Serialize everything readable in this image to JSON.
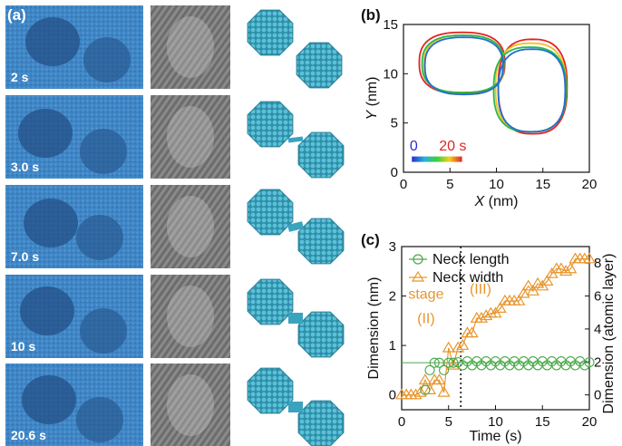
{
  "panel_a": {
    "label": "(a)",
    "frames": [
      {
        "time_label": "2 s"
      },
      {
        "time_label": "3.0 s"
      },
      {
        "time_label": "7.0 s"
      },
      {
        "time_label": "10 s"
      },
      {
        "time_label": "20.6 s"
      }
    ]
  },
  "panel_b": {
    "label": "(b)",
    "colorbar_start": "0",
    "colorbar_end": "20 s"
  },
  "panel_c": {
    "label": "(c)",
    "legend": [
      "Neck  length",
      "Neck  width"
    ],
    "stage_ii_line1": "stage",
    "stage_ii_line2": "(II)",
    "stage_iii": "(III)"
  },
  "colors": {
    "tem_blue": "#3f86c6",
    "atoms": "#3aa3bd",
    "neck_length": "#4aa84a",
    "neck_width": "#e8962e"
  },
  "chart_data": [
    {
      "type": "line",
      "panel": "b",
      "x_label": "X (nm)",
      "y_label": "Y (nm)",
      "xlim": [
        0,
        20
      ],
      "ylim": [
        0,
        15
      ],
      "x_ticks": [
        0,
        5,
        10,
        15,
        20
      ],
      "y_ticks": [
        0,
        5,
        10,
        15
      ],
      "series": [
        {
          "color": "#e52222",
          "left_particle": {
            "cx": 6.3,
            "cy": 11.1,
            "rx": 4.6,
            "ry": 3.1
          },
          "right_particle": {
            "cx": 13.9,
            "cy": 8.7,
            "rx": 3.7,
            "ry": 4.8
          }
        },
        {
          "color": "#f0c020",
          "left_particle": {
            "cx": 6.5,
            "cy": 10.9,
            "rx": 4.3,
            "ry": 3.0
          },
          "right_particle": {
            "cx": 13.7,
            "cy": 8.6,
            "rx": 3.8,
            "ry": 4.5
          }
        },
        {
          "color": "#2ab84a",
          "left_particle": {
            "cx": 6.4,
            "cy": 11.0,
            "rx": 4.4,
            "ry": 2.9
          },
          "right_particle": {
            "cx": 13.6,
            "cy": 8.4,
            "rx": 3.9,
            "ry": 4.3
          }
        },
        {
          "color": "#1f6fd0",
          "left_particle": {
            "cx": 6.5,
            "cy": 10.8,
            "rx": 4.2,
            "ry": 2.9
          },
          "right_particle": {
            "cx": 13.8,
            "cy": 8.3,
            "rx": 3.6,
            "ry": 4.2
          }
        }
      ]
    },
    {
      "type": "line",
      "panel": "c",
      "x_label": "Time (s)",
      "y_label": "Dimension (nm)",
      "y2_label": "Dimension (atomic layer)",
      "xlim": [
        0,
        20
      ],
      "ylim": [
        -0.3,
        3
      ],
      "y2lim": [
        -0.9,
        9
      ],
      "x_ticks": [
        0,
        5,
        10,
        15,
        20
      ],
      "y_ticks": [
        0,
        1,
        2,
        3
      ],
      "y2_ticks": [
        0,
        2,
        4,
        6,
        8
      ],
      "stage_boundary_time": 6.3,
      "series": [
        {
          "name": "Neck length",
          "marker": "circle",
          "x": [
            2.5,
            3.0,
            3.5,
            4.0,
            4.5,
            5.0,
            5.5,
            6.0,
            6.5,
            7.0,
            7.5,
            8.0,
            8.5,
            9.0,
            9.5,
            10.0,
            10.5,
            11.0,
            11.5,
            12.0,
            12.5,
            13.0,
            13.5,
            14.0,
            14.5,
            15.0,
            15.5,
            16.0,
            16.5,
            17.0,
            17.5,
            18.0,
            18.5,
            19.0,
            19.5,
            20.0
          ],
          "y": [
            0.1,
            0.5,
            0.65,
            0.65,
            0.5,
            0.65,
            0.65,
            0.66,
            0.6,
            0.68,
            0.6,
            0.68,
            0.6,
            0.68,
            0.6,
            0.68,
            0.6,
            0.68,
            0.6,
            0.68,
            0.6,
            0.68,
            0.6,
            0.68,
            0.6,
            0.68,
            0.6,
            0.68,
            0.6,
            0.68,
            0.6,
            0.68,
            0.6,
            0.68,
            0.6,
            0.66
          ]
        },
        {
          "name": "Neck width",
          "marker": "triangle",
          "x": [
            0,
            0.5,
            1.0,
            1.5,
            2.0,
            2.5,
            3.0,
            3.5,
            4.0,
            4.5,
            5.0,
            5.5,
            6.0,
            6.5,
            7.0,
            7.5,
            8.0,
            8.5,
            9.0,
            9.5,
            10.0,
            10.5,
            11.0,
            11.5,
            12.0,
            12.5,
            13.0,
            13.5,
            14.0,
            14.5,
            15.0,
            15.5,
            16.0,
            16.5,
            17.0,
            17.5,
            18.0,
            18.5,
            19.0,
            19.5,
            20.0
          ],
          "y": [
            0.0,
            0.0,
            0.0,
            0.0,
            0.05,
            0.3,
            0.1,
            0.3,
            0.3,
            0.05,
            0.95,
            0.6,
            0.95,
            1.0,
            1.25,
            1.25,
            1.55,
            1.55,
            1.6,
            1.65,
            1.65,
            1.75,
            1.9,
            1.9,
            1.9,
            1.9,
            2.05,
            2.2,
            2.1,
            2.25,
            2.2,
            2.3,
            2.45,
            2.55,
            2.55,
            2.5,
            2.55,
            2.75,
            2.75,
            2.75,
            2.75
          ]
        }
      ]
    }
  ]
}
